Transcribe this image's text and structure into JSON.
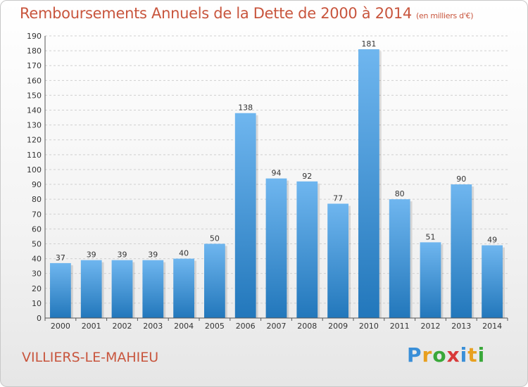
{
  "header": {
    "title": "Remboursements Annuels de la Dette de 2000 à 2014",
    "unit_note": "(en milliers d'€)"
  },
  "footer": {
    "commune": "VILLIERS-LE-MAHIEU",
    "logo": {
      "letters": [
        "P",
        "r",
        "o",
        "x",
        "i",
        "t",
        "i"
      ],
      "colors": [
        "#3a8fd8",
        "#e8a020",
        "#3aa83a",
        "#d83a3a",
        "#3a8fd8",
        "#e8a020",
        "#3aa83a"
      ]
    }
  },
  "colors": {
    "bar_light": "#6fb6ef",
    "bar_dark": "#2277bb",
    "grid": "#d0d0d0",
    "axis": "#555555",
    "title": "#c8553d"
  },
  "chart_data": {
    "type": "bar",
    "categories": [
      "2000",
      "2001",
      "2002",
      "2003",
      "2004",
      "2005",
      "2006",
      "2007",
      "2008",
      "2009",
      "2010",
      "2011",
      "2012",
      "2013",
      "2014"
    ],
    "values": [
      37,
      39,
      39,
      39,
      40,
      50,
      138,
      94,
      92,
      77,
      181,
      80,
      51,
      90,
      49
    ],
    "ylim": [
      0,
      190
    ],
    "yticks": [
      0,
      10,
      20,
      30,
      40,
      50,
      60,
      70,
      80,
      90,
      100,
      110,
      120,
      130,
      140,
      150,
      160,
      170,
      180,
      190
    ],
    "grid": "horizontal-dashed",
    "data_labels": true
  }
}
